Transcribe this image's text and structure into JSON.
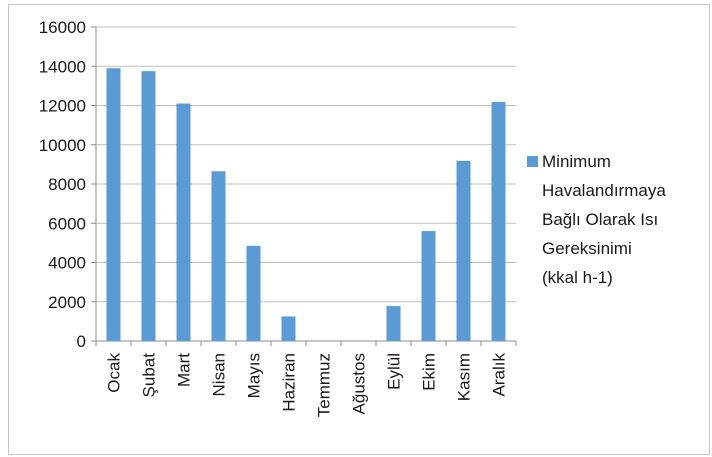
{
  "chart_data": {
    "type": "bar",
    "categories": [
      "Ocak",
      "Şubat",
      "Mart",
      "Nisan",
      "Mayıs",
      "Haziran",
      "Temmuz",
      "Ağustos",
      "Eylül",
      "Ekim",
      "Kasım",
      "Aralık"
    ],
    "series": [
      {
        "name": "Minimum Havalandırmaya Bağlı Olarak Isı Gereksinimi (kkal h-1)",
        "values": [
          13900,
          13750,
          12100,
          8650,
          4850,
          1250,
          0,
          0,
          1780,
          5600,
          9180,
          12180
        ]
      }
    ],
    "legend_lines": [
      "Minimum",
      "Havalandırmaya",
      "Bağlı Olarak Isı",
      "Gereksinimi",
      "(kkal h-1)"
    ],
    "ylim": [
      0,
      16000
    ],
    "yticks": [
      0,
      2000,
      4000,
      6000,
      8000,
      10000,
      12000,
      14000,
      16000
    ],
    "xlabel": "",
    "ylabel": "",
    "title": "",
    "grid": true,
    "legend_position": "right",
    "bar_color": "#5b9bd5",
    "grid_color": "#bfbfbf"
  }
}
